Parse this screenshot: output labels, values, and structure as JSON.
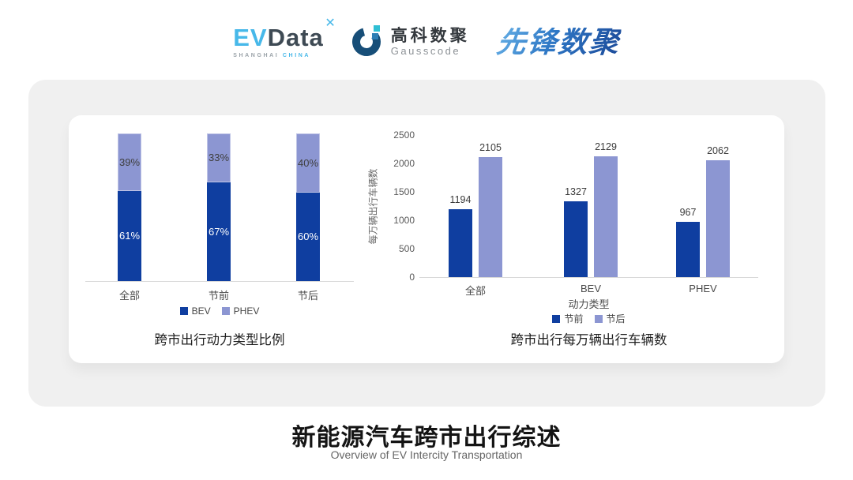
{
  "header": {
    "evdata": {
      "ev": "EV",
      "data": "Data",
      "mark": "x-star-mark",
      "sub_left": "SHANGHAI",
      "sub_right": "CHINA"
    },
    "gausscode": {
      "cn": "高科数聚",
      "en": "Gausscode",
      "mark": "g-ring-mark"
    },
    "xianfeng": {
      "text": "先锋数聚"
    }
  },
  "footer": {
    "title": "新能源汽车跨市出行综述",
    "subtitle": "Overview of EV Intercity Transportation"
  },
  "colors": {
    "dark_blue": "#0F3EA0",
    "light_purple": "#8C96D2",
    "axis_gray": "#D9D9D9",
    "gausscode_ring": "#174E78",
    "gausscode_cyan": "#2FBFD4",
    "evdata_blue": "#47B8E9"
  },
  "chart_data": [
    {
      "type": "bar",
      "stacked": true,
      "title": "跨市出行动力类型比例",
      "categories": [
        "全部",
        "节前",
        "节后"
      ],
      "series": [
        {
          "name": "BEV",
          "values": [
            61,
            67,
            60
          ],
          "color": "#0F3EA0",
          "label_color": "#FFFFFF"
        },
        {
          "name": "PHEV",
          "values": [
            39,
            33,
            40
          ],
          "color": "#8C96D2",
          "label_color": "#3F3F3F"
        }
      ],
      "unit": "%",
      "ylim": [
        0,
        100
      ],
      "grid": false,
      "legend_position": "bottom"
    },
    {
      "type": "bar",
      "stacked": false,
      "title": "跨市出行每万辆出行车辆数",
      "categories": [
        "全部",
        "BEV",
        "PHEV"
      ],
      "xlabel": "动力类型",
      "ylabel": "每万辆出行车辆数",
      "series": [
        {
          "name": "节前",
          "values": [
            1194,
            1327,
            967
          ],
          "color": "#0F3EA0"
        },
        {
          "name": "节后",
          "values": [
            2105,
            2129,
            2062
          ],
          "color": "#8C96D2"
        }
      ],
      "ylim": [
        0,
        2500
      ],
      "yticks": [
        0,
        500,
        1000,
        1500,
        2000,
        2500
      ],
      "grid": false,
      "legend_position": "bottom"
    }
  ]
}
